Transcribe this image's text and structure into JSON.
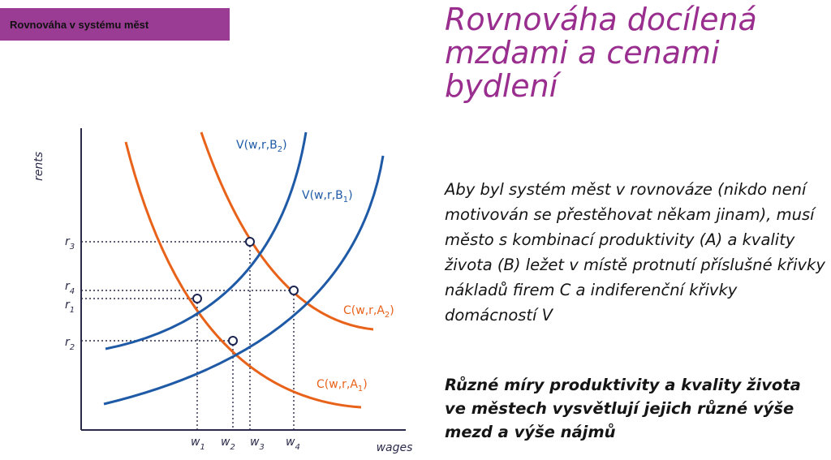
{
  "banner": {
    "text": "Rovnováha v systému měst"
  },
  "title": "Rovnováha docílená mzdami a cenami bydlení",
  "paragraph1": "Aby byl systém měst v rovnováze (nikdo není motivován se přestěhovat někam jinam), musí město s kombinací produktivity (A) a kvality života (B) ležet v místě protnutí příslušné křivky nákladů firem C a indiferenční křivky domácností V",
  "paragraph2": "Různé míry produktivity a kvality života ve městech vysvětlují jejich různé výše mezd a výše nájmů",
  "diagram": {
    "y_axis_label": "rents",
    "x_axis_label": "wages",
    "y_ticks": [
      {
        "base": "r",
        "sub": "3"
      },
      {
        "base": "r",
        "sub": "4"
      },
      {
        "base": "r",
        "sub": "1"
      },
      {
        "base": "r",
        "sub": "2"
      }
    ],
    "x_ticks": [
      {
        "base": "w",
        "sub": "1"
      },
      {
        "base": "w",
        "sub": "2"
      },
      {
        "base": "w",
        "sub": "3"
      },
      {
        "base": "w",
        "sub": "4"
      }
    ],
    "curves": {
      "vb2": {
        "pre": "V(w,r,B",
        "sub": "2",
        "post": ")"
      },
      "vb1": {
        "pre": "V(w,r,B",
        "sub": "1",
        "post": ")"
      },
      "ca2": {
        "pre": "C(w,r,A",
        "sub": "2",
        "post": ")"
      },
      "ca1": {
        "pre": "C(w,r,A",
        "sub": "1",
        "post": ")"
      }
    },
    "colors": {
      "indifference": "#1f5aa6",
      "cost": "#e8621a",
      "axis": "#2a2a4a"
    }
  }
}
